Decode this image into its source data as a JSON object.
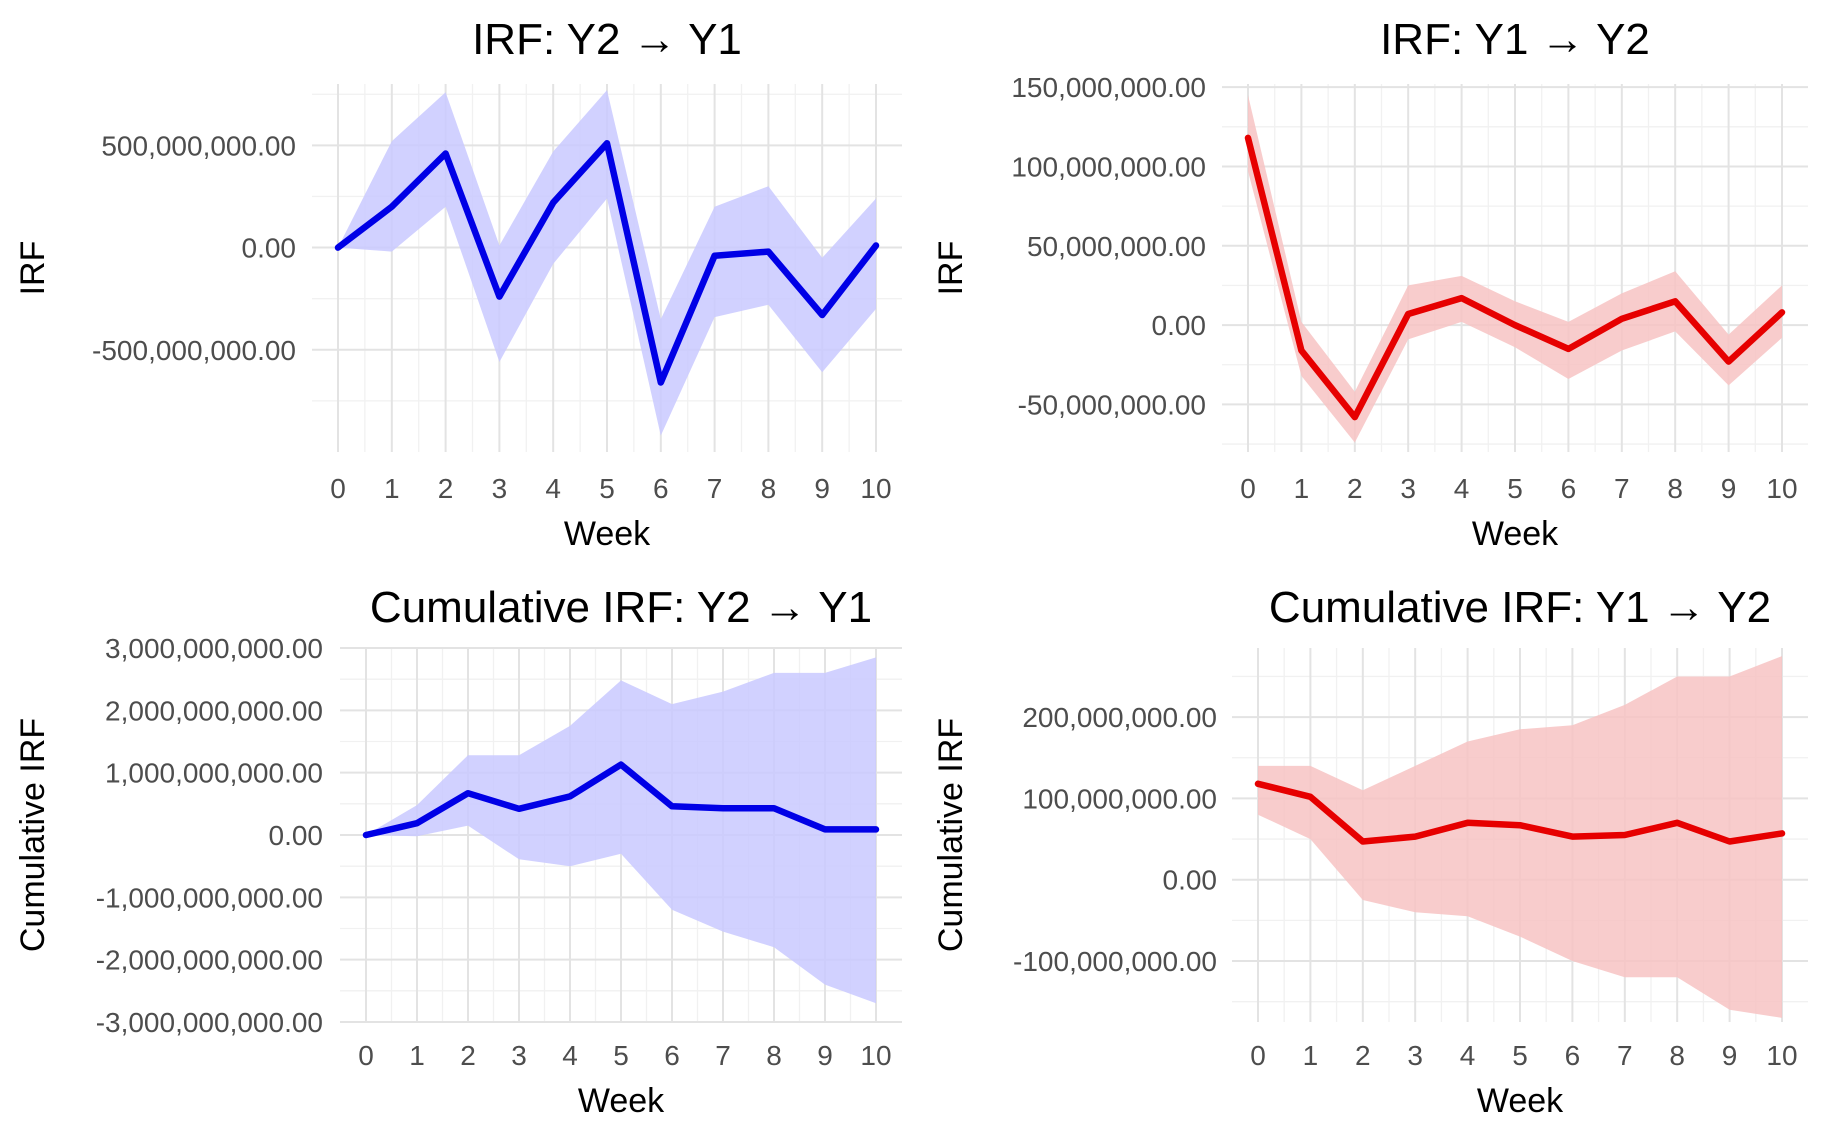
{
  "chart_data": [
    {
      "type": "line",
      "title": "IRF: Y2 → Y1",
      "xlabel": "Week",
      "ylabel": "IRF",
      "x": [
        0,
        1,
        2,
        3,
        4,
        5,
        6,
        7,
        8,
        9,
        10
      ],
      "xlim": [
        0,
        10
      ],
      "ylim": [
        -1000000000,
        800000000
      ],
      "yticks": [
        -500000000,
        0,
        500000000
      ],
      "ytick_labels": [
        "-500,000,000.00",
        "0.00",
        "500,000,000.00"
      ],
      "series": [
        {
          "values": [
            0,
            200000000,
            460000000,
            -240000000,
            220000000,
            510000000,
            -660000000,
            -40000000,
            -20000000,
            -330000000,
            10000000
          ],
          "lower": [
            0,
            -20000000,
            200000000,
            -560000000,
            -80000000,
            240000000,
            -920000000,
            -340000000,
            -280000000,
            -610000000,
            -300000000
          ],
          "upper": [
            0,
            520000000,
            760000000,
            10000000,
            470000000,
            770000000,
            -350000000,
            200000000,
            300000000,
            -50000000,
            240000000
          ],
          "color": "#0000e6",
          "band_color": "#c9c9ff"
        }
      ],
      "grid": true,
      "legend": "none"
    },
    {
      "type": "line",
      "title": "IRF: Y1 → Y2",
      "xlabel": "Week",
      "ylabel": "IRF",
      "x": [
        0,
        1,
        2,
        3,
        4,
        5,
        6,
        7,
        8,
        9,
        10
      ],
      "xlim": [
        0,
        10
      ],
      "ylim": [
        -80000000,
        152000000
      ],
      "yticks": [
        -50000000,
        0,
        50000000,
        100000000,
        150000000
      ],
      "ytick_labels": [
        "-50,000,000.00",
        "0.00",
        "50,000,000.00",
        "100,000,000.00",
        "150,000,000.00"
      ],
      "series": [
        {
          "values": [
            118000000,
            -16000000,
            -58000000,
            7000000,
            17000000,
            0,
            -15000000,
            4000000,
            15000000,
            -23000000,
            8000000
          ],
          "lower": [
            97000000,
            -32000000,
            -74000000,
            -9000000,
            2000000,
            -14000000,
            -34000000,
            -16000000,
            -4000000,
            -38000000,
            -8000000
          ],
          "upper": [
            145000000,
            2000000,
            -42000000,
            25000000,
            31000000,
            15000000,
            2000000,
            20000000,
            34000000,
            -6000000,
            25000000
          ],
          "color": "#e60000",
          "band_color": "#f7c3c3"
        }
      ],
      "grid": true,
      "legend": "none"
    },
    {
      "type": "line",
      "title": "Cumulative IRF: Y2 → Y1",
      "xlabel": "Week",
      "ylabel": "Cumulative IRF",
      "x": [
        0,
        1,
        2,
        3,
        4,
        5,
        6,
        7,
        8,
        9,
        10
      ],
      "xlim": [
        0,
        10
      ],
      "ylim": [
        -3000000000,
        3000000000
      ],
      "yticks": [
        -3000000000,
        -2000000000,
        -1000000000,
        0,
        1000000000,
        2000000000,
        3000000000
      ],
      "ytick_labels": [
        "-3,000,000,000.00",
        "-2,000,000,000.00",
        "-1,000,000,000.00",
        "0.00",
        "1,000,000,000.00",
        "2,000,000,000.00",
        "3,000,000,000.00"
      ],
      "series": [
        {
          "values": [
            0,
            190000000,
            670000000,
            420000000,
            620000000,
            1130000000,
            460000000,
            430000000,
            430000000,
            90000000,
            90000000
          ],
          "lower": [
            0,
            -20000000,
            150000000,
            -390000000,
            -500000000,
            -300000000,
            -1200000000,
            -1550000000,
            -1800000000,
            -2400000000,
            -2700000000
          ],
          "upper": [
            0,
            480000000,
            1280000000,
            1280000000,
            1750000000,
            2480000000,
            2100000000,
            2300000000,
            2600000000,
            2600000000,
            2850000000
          ],
          "color": "#0000e6",
          "band_color": "#c9c9ff"
        }
      ],
      "grid": true,
      "legend": "none"
    },
    {
      "type": "line",
      "title": "Cumulative IRF: Y1 → Y2",
      "xlabel": "Week",
      "ylabel": "Cumulative IRF",
      "x": [
        0,
        1,
        2,
        3,
        4,
        5,
        6,
        7,
        8,
        9,
        10
      ],
      "xlim": [
        0,
        10
      ],
      "ylim": [
        -175000000,
        285000000
      ],
      "yticks": [
        -100000000,
        0,
        100000000,
        200000000
      ],
      "ytick_labels": [
        "-100,000,000.00",
        "0.00",
        "100,000,000.00",
        "200,000,000.00"
      ],
      "series": [
        {
          "values": [
            118000000,
            102000000,
            47000000,
            53000000,
            70000000,
            67000000,
            53000000,
            55000000,
            70000000,
            47000000,
            57000000
          ],
          "lower": [
            80000000,
            50000000,
            -25000000,
            -40000000,
            -45000000,
            -70000000,
            -100000000,
            -120000000,
            -120000000,
            -160000000,
            -170000000
          ],
          "upper": [
            140000000,
            140000000,
            110000000,
            140000000,
            170000000,
            185000000,
            190000000,
            215000000,
            250000000,
            250000000,
            275000000
          ],
          "color": "#e60000",
          "band_color": "#f7c3c3"
        }
      ],
      "grid": true,
      "legend": "none"
    }
  ]
}
